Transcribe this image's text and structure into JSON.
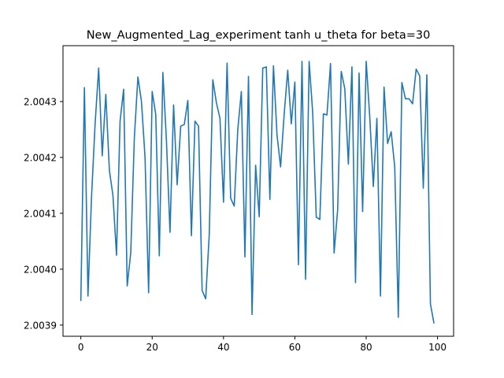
{
  "chart_data": {
    "type": "line",
    "title": "New_Augmented_Lag_experiment tanh u_theta for beta=30",
    "xlabel": "",
    "ylabel": "",
    "xlim": [
      -5,
      104.5
    ],
    "ylim": [
      2.00388,
      2.0044
    ],
    "x_ticks": [
      0,
      20,
      40,
      60,
      80,
      100
    ],
    "x_tick_labels": [
      "0",
      "20",
      "40",
      "60",
      "80",
      "100"
    ],
    "y_ticks": [
      2.0039,
      2.004,
      2.0041,
      2.0042,
      2.0043
    ],
    "y_tick_labels": [
      "2.0039",
      "2.0040",
      "2.0041",
      "2.0042",
      "2.0043"
    ],
    "grid": false,
    "series": [
      {
        "color": "#1f77b4",
        "x": [
          0,
          1,
          2,
          3,
          4,
          5,
          6,
          7,
          8,
          9,
          10,
          11,
          12,
          13,
          14,
          15,
          16,
          17,
          18,
          19,
          20,
          21,
          22,
          23,
          24,
          25,
          26,
          27,
          28,
          29,
          30,
          31,
          32,
          33,
          34,
          35,
          36,
          37,
          38,
          39,
          40,
          41,
          42,
          43,
          44,
          45,
          46,
          47,
          48,
          49,
          50,
          51,
          52,
          53,
          54,
          55,
          56,
          57,
          58,
          59,
          60,
          61,
          62,
          63,
          64,
          65,
          66,
          67,
          68,
          69,
          70,
          71,
          72,
          73,
          74,
          75,
          76,
          77,
          78,
          79,
          80,
          81,
          82,
          83,
          84,
          85,
          86,
          87,
          88,
          89,
          90,
          91,
          92,
          93,
          94,
          95,
          96,
          97,
          98,
          99
        ],
        "values": [
          2.003943,
          2.004325,
          2.003952,
          2.00413,
          2.00426,
          2.00436,
          2.004203,
          2.004313,
          2.004177,
          2.004132,
          2.004025,
          2.004265,
          2.004322,
          2.00397,
          2.00403,
          2.004235,
          2.004344,
          2.0043,
          2.0042,
          2.003958,
          2.004318,
          2.004277,
          2.004024,
          2.004352,
          2.00423,
          2.004066,
          2.004294,
          2.004151,
          2.004256,
          2.004259,
          2.004302,
          2.00406,
          2.004265,
          2.004256,
          2.003962,
          2.003947,
          2.004062,
          2.004339,
          2.004298,
          2.00427,
          2.00412,
          2.004369,
          2.004127,
          2.004113,
          2.00425,
          2.004318,
          2.004022,
          2.004345,
          2.003919,
          2.004186,
          2.004094,
          2.00436,
          2.004362,
          2.004125,
          2.004364,
          2.00424,
          2.004183,
          2.004277,
          2.004356,
          2.00426,
          2.004335,
          2.004008,
          2.004372,
          2.003982,
          2.004372,
          2.00428,
          2.004093,
          2.004089,
          2.004278,
          2.004276,
          2.004368,
          2.004029,
          2.004107,
          2.004354,
          2.004323,
          2.004188,
          2.004362,
          2.003976,
          2.004351,
          2.004103,
          2.004372,
          2.004272,
          2.004148,
          2.00427,
          2.003952,
          2.004326,
          2.004225,
          2.004246,
          2.004183,
          2.003914,
          2.004334,
          2.004305,
          2.004305,
          2.004296,
          2.004358,
          2.004346,
          2.004145,
          2.004348,
          2.003938,
          2.003903
        ]
      }
    ]
  }
}
